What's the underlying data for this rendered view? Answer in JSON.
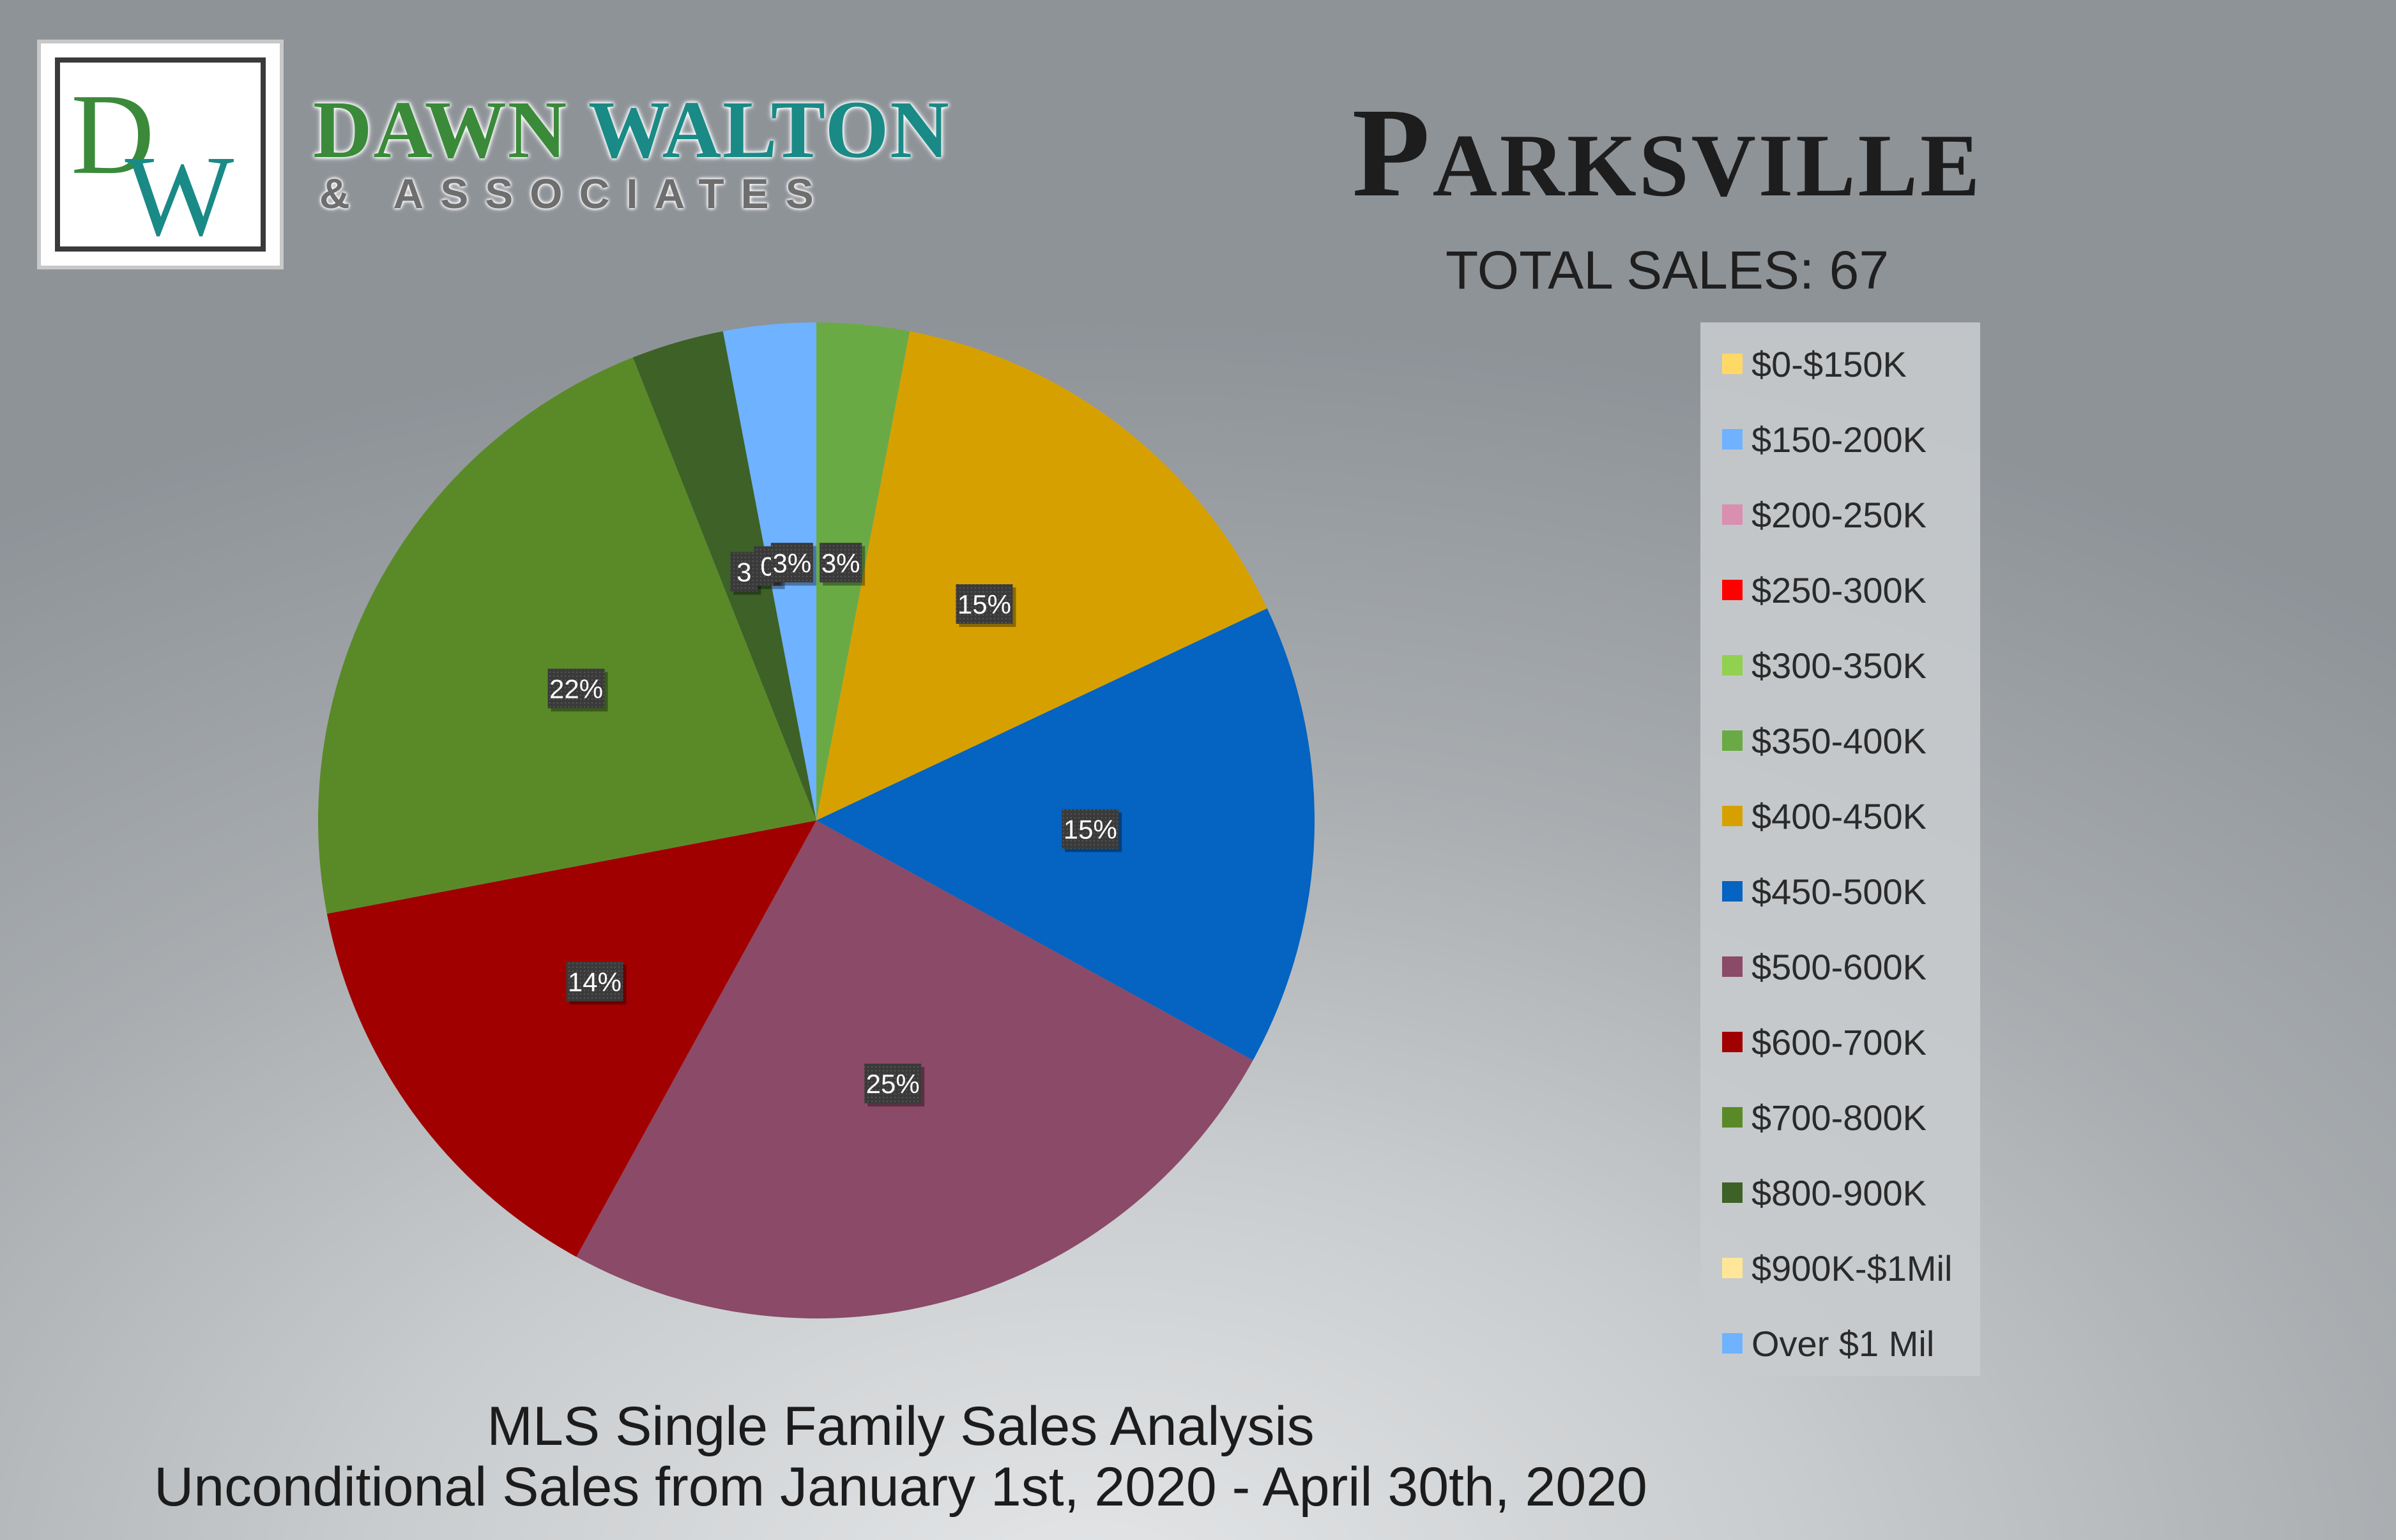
{
  "branding": {
    "logo_monogram": "DW",
    "name_part1": "DAWN ",
    "name_part2": "WALTON",
    "subtitle": "& ASSOCIATES",
    "colors": {
      "green": "#3a8a3a",
      "teal": "#1a8a86"
    }
  },
  "header": {
    "city": "Parksville",
    "total_sales": "TOTAL SALES: 67"
  },
  "footer": {
    "line1": "MLS Single Family Sales Analysis",
    "line2": "Unconditional Sales from January 1st, 2020 - April 30th, 2020"
  },
  "chart_data": {
    "type": "pie",
    "title": "",
    "slices": [
      {
        "name": "$0-$150K",
        "value": 0,
        "color": "#ffd966",
        "label": ""
      },
      {
        "name": "$150-200K",
        "value": 0,
        "color": "#6fb2ff",
        "label": ""
      },
      {
        "name": "$200-250K",
        "value": 0,
        "color": "#d98fb0",
        "label": ""
      },
      {
        "name": "$250-300K",
        "value": 0,
        "color": "#ff0000",
        "label": ""
      },
      {
        "name": "$300-350K",
        "value": 0,
        "color": "#92d050",
        "label": ""
      },
      {
        "name": "$350-400K",
        "value": 3,
        "color": "#6aaa45",
        "label": "3%"
      },
      {
        "name": "$400-450K",
        "value": 15,
        "color": "#d6a100",
        "label": "15%"
      },
      {
        "name": "$450-500K",
        "value": 15,
        "color": "#0563c1",
        "label": "15%"
      },
      {
        "name": "$500-600K",
        "value": 25,
        "color": "#8a4a68",
        "label": "25%"
      },
      {
        "name": "$600-700K",
        "value": 14,
        "color": "#a00000",
        "label": "14%"
      },
      {
        "name": "$700-800K",
        "value": 22,
        "color": "#5a8a28",
        "label": "22%"
      },
      {
        "name": "$800-900K",
        "value": 3,
        "color": "#3d6127",
        "label": "3"
      },
      {
        "name": "$900K-$1Mil",
        "value": 0,
        "color": "#ffe699",
        "label": "0"
      },
      {
        "name": "Over $1 Mil",
        "value": 3,
        "color": "#6fb2ff",
        "label": "3%"
      }
    ],
    "legend": "right"
  }
}
